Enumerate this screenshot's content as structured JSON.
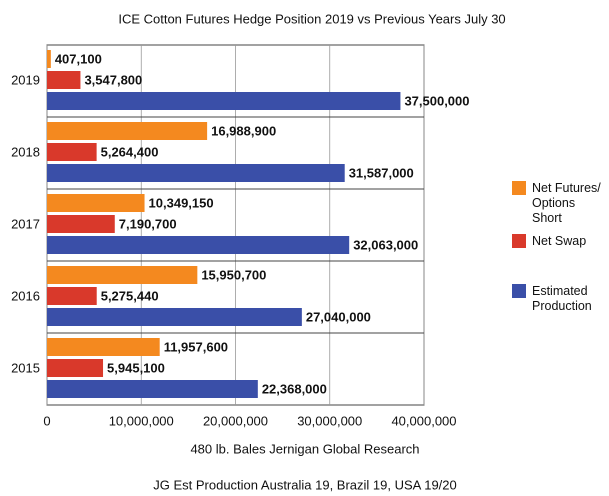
{
  "chart_data": {
    "type": "bar",
    "orientation": "horizontal",
    "title": "ICE Cotton Futures Hedge Position 2019 vs Previous Years July 30",
    "x_label": "480 lb. Bales  Jernigan Global Research",
    "footnote": "JG Est  Production  Australia 19, Brazil 19, USA 19/20",
    "categories": [
      "2019",
      "2018",
      "2017",
      "2016",
      "2015"
    ],
    "series": [
      {
        "name": "Net Futures/ Options Short",
        "color": "#f4891f",
        "values": [
          407100,
          16988900,
          10349150,
          15950700,
          11957600
        ],
        "value_labels": [
          "407,100",
          "16,988,900",
          "10,349,150",
          "15,950,700",
          "11,957,600"
        ]
      },
      {
        "name": "Net Swap",
        "color": "#d9392b",
        "values": [
          3547800,
          5264400,
          7190700,
          5275440,
          5945100
        ],
        "value_labels": [
          "3,547,800",
          "5,264,400",
          "7,190,700",
          "5,275,440",
          "5,945,100"
        ]
      },
      {
        "name": "Estimated Production",
        "color": "#3a4fa8",
        "values": [
          37500000,
          31587000,
          32063000,
          27040000,
          22368000
        ],
        "value_labels": [
          "37,500,000",
          "31,587,000",
          "32,063,000",
          "27,040,000",
          "22,368,000"
        ]
      }
    ],
    "xlim": [
      0,
      40000000
    ],
    "xticks": [
      0,
      {
        "value": 10000000,
        "label": "10,000,000"
      },
      {
        "value": 20000000,
        "label": "20,000,000"
      },
      {
        "value": 30000000,
        "label": "30,000,000"
      },
      {
        "value": 40000000,
        "label": "40,000,000"
      }
    ],
    "grid": true
  }
}
